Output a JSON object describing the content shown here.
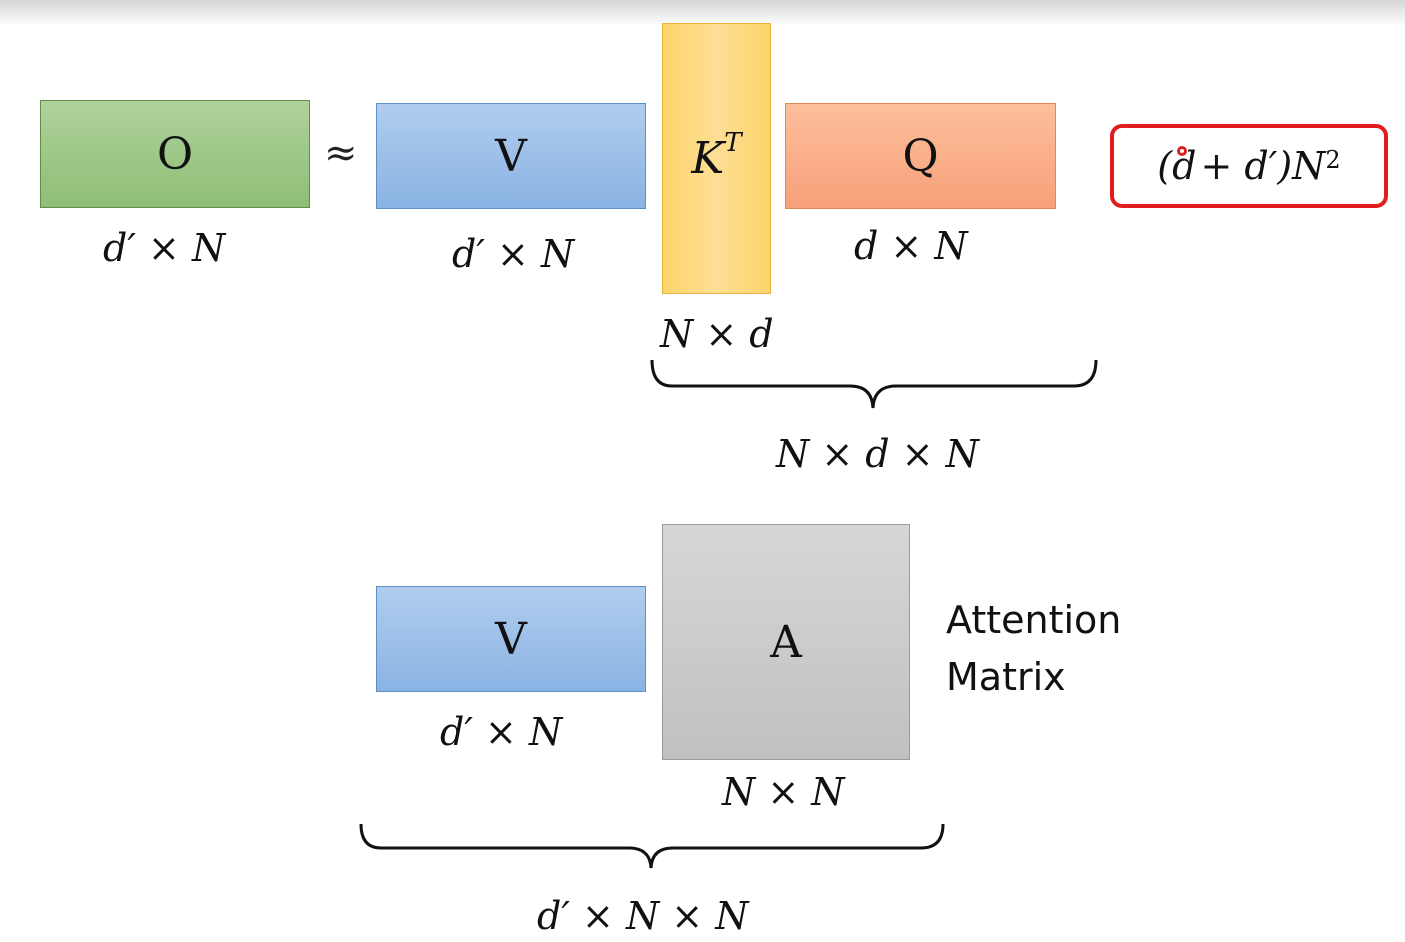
{
  "top_row": {
    "o_label": "O",
    "approx_symbol": "≈",
    "v_label": "V",
    "kt_label": "K",
    "kt_superscript": "T",
    "q_label": "Q",
    "o_dims": "d′ × N",
    "v_dims": "d′ × N",
    "kt_dims": "N × d",
    "q_dims": "d × N",
    "brace_dims": "N × d × N"
  },
  "cost_highlight": {
    "prefix": "(d",
    "middle": "+ d′)N",
    "exponent": "2"
  },
  "bottom_row": {
    "v_label": "V",
    "a_label": "A",
    "v_dims": "d′ × N",
    "a_dims": "N × N",
    "attention_line1": "Attention",
    "attention_line2": "Matrix",
    "brace_dims": "d′ × N × N"
  },
  "colors": {
    "output": "#a3ca8c",
    "value": "#9fc2ea",
    "key": "#fdd77e",
    "query": "#fbb08a",
    "attention": "#cbcbcb",
    "highlight_border": "#e01e1e"
  }
}
